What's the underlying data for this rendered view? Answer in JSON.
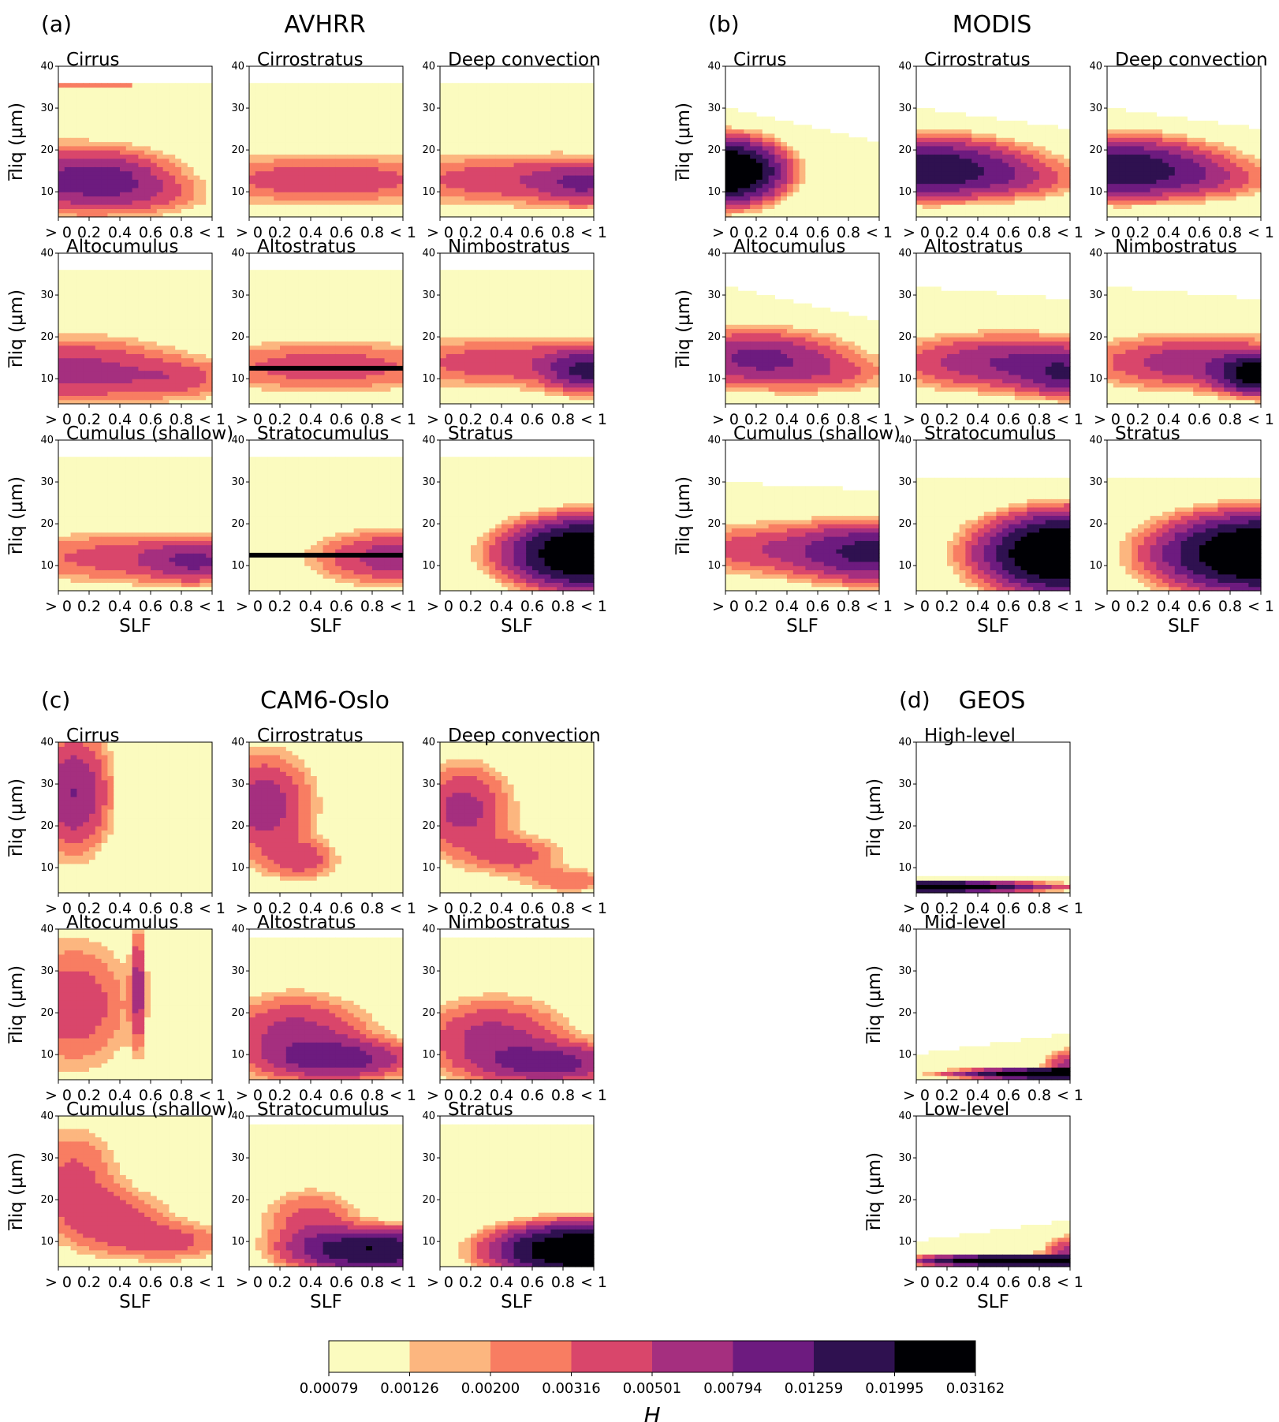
{
  "figure": {
    "panels": [
      {
        "letter": "(a)",
        "title": "AVHRR"
      },
      {
        "letter": "(b)",
        "title": "MODIS"
      },
      {
        "letter": "(c)",
        "title": "CAM6-Oslo"
      },
      {
        "letter": "(d)",
        "title": "GEOS"
      }
    ],
    "y_label": "r̅liq (μm)",
    "x_label": "SLF",
    "y_ticks": [
      "10",
      "20",
      "30",
      "40"
    ],
    "x_ticks": [
      "> 0",
      "0.2",
      "0.4",
      "0.6",
      "0.8",
      "< 1"
    ],
    "colorbar": {
      "label": "H",
      "ticks": [
        "0.00079",
        "0.00126",
        "0.00200",
        "0.00316",
        "0.00501",
        "0.00794",
        "0.01259",
        "0.01995",
        "0.03162"
      ],
      "colors": [
        "#fbfbbf",
        "#fcb67f",
        "#f87d62",
        "#d9466b",
        "#a52f7f",
        "#6d1b7f",
        "#2f1150",
        "#000004"
      ]
    }
  },
  "chart_data": [
    {
      "type": "heatmap",
      "panel": "(a)",
      "dataset": "AVHRR",
      "title": "Cirrus",
      "ylim": [
        4,
        40
      ],
      "xlim": [
        0,
        1
      ],
      "hotspots": [
        {
          "x": 0.0,
          "y": 13,
          "sx": 0.4,
          "sy": 5,
          "peak": 0.007
        },
        {
          "x": 0.35,
          "y": 13,
          "sx": 0.25,
          "sy": 4,
          "peak": 0.005
        },
        {
          "x": 0.65,
          "y": 9,
          "sx": 0.25,
          "sy": 3,
          "peak": 0.002
        }
      ],
      "max_y": 36,
      "band_y": 35.5,
      "band_level": 0.002
    },
    {
      "type": "heatmap",
      "panel": "(a)",
      "dataset": "AVHRR",
      "title": "Cirrostratus",
      "ylim": [
        4,
        40
      ],
      "xlim": [
        0,
        1
      ],
      "hotspots": [
        {
          "x": 0.5,
          "y": 13,
          "sx": 0.6,
          "sy": 4,
          "peak": 0.0045
        }
      ],
      "max_y": 36
    },
    {
      "type": "heatmap",
      "panel": "(a)",
      "dataset": "AVHRR",
      "title": "Deep convection",
      "ylim": [
        4,
        40
      ],
      "xlim": [
        0,
        1
      ],
      "hotspots": [
        {
          "x": 0.5,
          "y": 13,
          "sx": 0.6,
          "sy": 4,
          "peak": 0.0045
        },
        {
          "x": 0.95,
          "y": 12,
          "sx": 0.2,
          "sy": 3,
          "peak": 0.006
        }
      ],
      "max_y": 36
    },
    {
      "type": "heatmap",
      "panel": "(a)",
      "dataset": "AVHRR",
      "title": "Altocumulus",
      "ylim": [
        4,
        40
      ],
      "xlim": [
        0,
        1
      ],
      "hotspots": [
        {
          "x": 0.1,
          "y": 12,
          "sx": 0.45,
          "sy": 5,
          "peak": 0.006
        },
        {
          "x": 0.8,
          "y": 10,
          "sx": 0.25,
          "sy": 3,
          "peak": 0.003
        }
      ],
      "max_y": 36
    },
    {
      "type": "heatmap",
      "panel": "(a)",
      "dataset": "AVHRR",
      "title": "Altostratus",
      "ylim": [
        4,
        40
      ],
      "xlim": [
        0,
        1
      ],
      "hotspots": [
        {
          "x": 0.5,
          "y": 13,
          "sx": 0.6,
          "sy": 4,
          "peak": 0.0042
        }
      ],
      "max_y": 36,
      "line_y": 12.5
    },
    {
      "type": "heatmap",
      "panel": "(a)",
      "dataset": "AVHRR",
      "title": "Nimbostratus",
      "ylim": [
        4,
        40
      ],
      "xlim": [
        0,
        1
      ],
      "hotspots": [
        {
          "x": 0.5,
          "y": 14,
          "sx": 0.6,
          "sy": 4,
          "peak": 0.0045
        },
        {
          "x": 0.95,
          "y": 12,
          "sx": 0.15,
          "sy": 3,
          "peak": 0.012
        }
      ],
      "max_y": 36
    },
    {
      "type": "heatmap",
      "panel": "(a)",
      "dataset": "AVHRR",
      "title": "Cumulus (shallow)",
      "ylim": [
        4,
        40
      ],
      "xlim": [
        0,
        1
      ],
      "hotspots": [
        {
          "x": 0.5,
          "y": 12,
          "sx": 0.6,
          "sy": 4,
          "peak": 0.0042
        },
        {
          "x": 0.9,
          "y": 11,
          "sx": 0.2,
          "sy": 3,
          "peak": 0.006
        }
      ],
      "max_y": 36
    },
    {
      "type": "heatmap",
      "panel": "(a)",
      "dataset": "AVHRR",
      "title": "Stratocumulus",
      "ylim": [
        4,
        40
      ],
      "xlim": [
        0,
        1
      ],
      "hotspots": [
        {
          "x": 1.0,
          "y": 12,
          "sx": 0.35,
          "sy": 4,
          "peak": 0.007
        }
      ],
      "max_y": 36,
      "line_y": 12.5
    },
    {
      "type": "heatmap",
      "panel": "(a)",
      "dataset": "AVHRR",
      "title": "Stratus",
      "ylim": [
        4,
        40
      ],
      "xlim": [
        0,
        1
      ],
      "hotspots": [
        {
          "x": 1.0,
          "y": 13,
          "sx": 0.3,
          "sy": 4.5,
          "peak": 0.04
        }
      ],
      "max_y": 36
    },
    {
      "type": "heatmap",
      "panel": "(b)",
      "dataset": "MODIS",
      "title": "Cirrus",
      "ylim": [
        4,
        40
      ],
      "xlim": [
        0,
        1
      ],
      "hotspots": [
        {
          "x": 0.0,
          "y": 15,
          "sx": 0.2,
          "sy": 4,
          "peak": 0.04
        }
      ],
      "max_y": 30,
      "max_y_slope": -8
    },
    {
      "type": "heatmap",
      "panel": "(b)",
      "dataset": "MODIS",
      "title": "Cirrostratus",
      "ylim": [
        4,
        40
      ],
      "xlim": [
        0,
        1
      ],
      "hotspots": [
        {
          "x": 0.0,
          "y": 16,
          "sx": 0.4,
          "sy": 4,
          "peak": 0.018
        },
        {
          "x": 0.5,
          "y": 13,
          "sx": 0.4,
          "sy": 3,
          "peak": 0.004
        }
      ],
      "max_y": 30,
      "max_y_slope": -5
    },
    {
      "type": "heatmap",
      "panel": "(b)",
      "dataset": "MODIS",
      "title": "Deep convection",
      "ylim": [
        4,
        40
      ],
      "xlim": [
        0,
        1
      ],
      "hotspots": [
        {
          "x": 0.0,
          "y": 16,
          "sx": 0.4,
          "sy": 4,
          "peak": 0.018
        },
        {
          "x": 0.5,
          "y": 13,
          "sx": 0.4,
          "sy": 3,
          "peak": 0.004
        }
      ],
      "max_y": 30,
      "max_y_slope": -5
    },
    {
      "type": "heatmap",
      "panel": "(b)",
      "dataset": "MODIS",
      "title": "Altocumulus",
      "ylim": [
        4,
        40
      ],
      "xlim": [
        0,
        1
      ],
      "hotspots": [
        {
          "x": 0.2,
          "y": 15,
          "sx": 0.35,
          "sy": 4,
          "peak": 0.009
        },
        {
          "x": 0.7,
          "y": 11,
          "sx": 0.3,
          "sy": 3,
          "peak": 0.0025
        }
      ],
      "max_y": 32,
      "max_y_slope": -8
    },
    {
      "type": "heatmap",
      "panel": "(b)",
      "dataset": "MODIS",
      "title": "Altostratus",
      "ylim": [
        4,
        40
      ],
      "xlim": [
        0,
        1
      ],
      "hotspots": [
        {
          "x": 0.6,
          "y": 14,
          "sx": 0.45,
          "sy": 4,
          "peak": 0.008
        },
        {
          "x": 1.0,
          "y": 11,
          "sx": 0.2,
          "sy": 3,
          "peak": 0.01
        }
      ],
      "max_y": 32,
      "max_y_slope": -3
    },
    {
      "type": "heatmap",
      "panel": "(b)",
      "dataset": "MODIS",
      "title": "Nimbostratus",
      "ylim": [
        4,
        40
      ],
      "xlim": [
        0,
        1
      ],
      "hotspots": [
        {
          "x": 0.6,
          "y": 14,
          "sx": 0.45,
          "sy": 4,
          "peak": 0.007
        },
        {
          "x": 1.0,
          "y": 11,
          "sx": 0.15,
          "sy": 2.5,
          "peak": 0.03
        }
      ],
      "max_y": 32,
      "max_y_slope": -3
    },
    {
      "type": "heatmap",
      "panel": "(b)",
      "dataset": "MODIS",
      "title": "Cumulus (shallow)",
      "ylim": [
        4,
        40
      ],
      "xlim": [
        0,
        1
      ],
      "hotspots": [
        {
          "x": 0.5,
          "y": 14,
          "sx": 0.6,
          "sy": 4,
          "peak": 0.005
        },
        {
          "x": 1.0,
          "y": 13,
          "sx": 0.3,
          "sy": 4,
          "peak": 0.012
        }
      ],
      "max_y": 30,
      "max_y_slope": -2
    },
    {
      "type": "heatmap",
      "panel": "(b)",
      "dataset": "MODIS",
      "title": "Stratocumulus",
      "ylim": [
        4,
        40
      ],
      "xlim": [
        0,
        1
      ],
      "hotspots": [
        {
          "x": 1.0,
          "y": 13,
          "sx": 0.3,
          "sy": 5,
          "peak": 0.045
        }
      ],
      "max_y": 31
    },
    {
      "type": "heatmap",
      "panel": "(b)",
      "dataset": "MODIS",
      "title": "Stratus",
      "ylim": [
        4,
        40
      ],
      "xlim": [
        0,
        1
      ],
      "hotspots": [
        {
          "x": 1.0,
          "y": 13,
          "sx": 0.35,
          "sy": 5,
          "peak": 0.04
        }
      ],
      "max_y": 31
    },
    {
      "type": "heatmap",
      "panel": "(c)",
      "dataset": "CAM6-Oslo",
      "title": "Cirrus",
      "ylim": [
        4,
        40
      ],
      "xlim": [
        0,
        1
      ],
      "hotspots": [
        {
          "x": 0.1,
          "y": 28,
          "sx": 0.15,
          "sy": 9,
          "peak": 0.008
        }
      ],
      "max_y": 40,
      "xcut": 0.35
    },
    {
      "type": "heatmap",
      "panel": "(c)",
      "dataset": "CAM6-Oslo",
      "title": "Cirrostratus",
      "ylim": [
        4,
        40
      ],
      "xlim": [
        0,
        1
      ],
      "hotspots": [
        {
          "x": 0.1,
          "y": 25,
          "sx": 0.2,
          "sy": 8,
          "peak": 0.0065
        },
        {
          "x": 0.35,
          "y": 12,
          "sx": 0.15,
          "sy": 3,
          "peak": 0.004
        }
      ],
      "max_y": 40,
      "xcut": 0.6
    },
    {
      "type": "heatmap",
      "panel": "(c)",
      "dataset": "CAM6-Oslo",
      "title": "Deep convection",
      "ylim": [
        4,
        40
      ],
      "xlim": [
        0,
        1
      ],
      "hotspots": [
        {
          "x": 0.15,
          "y": 24,
          "sx": 0.2,
          "sy": 7,
          "peak": 0.006
        },
        {
          "x": 0.5,
          "y": 13,
          "sx": 0.2,
          "sy": 3,
          "peak": 0.004
        },
        {
          "x": 0.85,
          "y": 7,
          "sx": 0.2,
          "sy": 2,
          "peak": 0.003
        }
      ],
      "max_y": 40
    },
    {
      "type": "heatmap",
      "panel": "(c)",
      "dataset": "CAM6-Oslo",
      "title": "Altocumulus",
      "ylim": [
        4,
        40
      ],
      "xlim": [
        0,
        1
      ],
      "hotspots": [
        {
          "x": 0.1,
          "y": 22,
          "sx": 0.25,
          "sy": 10,
          "peak": 0.0045
        },
        {
          "x": 0.52,
          "y": 26,
          "sx": 0.03,
          "sy": 9,
          "peak": 0.006
        }
      ],
      "max_y": 40,
      "xcut": 0.7
    },
    {
      "type": "heatmap",
      "panel": "(c)",
      "dataset": "CAM6-Oslo",
      "title": "Altostratus",
      "ylim": [
        4,
        40
      ],
      "xlim": [
        0,
        1
      ],
      "hotspots": [
        {
          "x": 0.3,
          "y": 15,
          "sx": 0.3,
          "sy": 6,
          "peak": 0.006
        },
        {
          "x": 0.6,
          "y": 9,
          "sx": 0.3,
          "sy": 3,
          "peak": 0.009
        }
      ],
      "max_y": 38
    },
    {
      "type": "heatmap",
      "panel": "(c)",
      "dataset": "CAM6-Oslo",
      "title": "Nimbostratus",
      "ylim": [
        4,
        40
      ],
      "xlim": [
        0,
        1
      ],
      "hotspots": [
        {
          "x": 0.35,
          "y": 14,
          "sx": 0.3,
          "sy": 6,
          "peak": 0.006
        },
        {
          "x": 0.75,
          "y": 8,
          "sx": 0.3,
          "sy": 3,
          "peak": 0.009
        }
      ],
      "max_y": 38
    },
    {
      "type": "heatmap",
      "panel": "(c)",
      "dataset": "CAM6-Oslo",
      "title": "Cumulus (shallow)",
      "ylim": [
        4,
        40
      ],
      "xlim": [
        0,
        1
      ],
      "hotspots": [
        {
          "x": 0.1,
          "y": 26,
          "sx": 0.2,
          "sy": 8,
          "peak": 0.0035
        },
        {
          "x": 0.35,
          "y": 15,
          "sx": 0.25,
          "sy": 5,
          "peak": 0.004
        },
        {
          "x": 0.75,
          "y": 10,
          "sx": 0.25,
          "sy": 3,
          "peak": 0.0035
        }
      ],
      "max_y": 40
    },
    {
      "type": "heatmap",
      "panel": "(c)",
      "dataset": "CAM6-Oslo",
      "title": "Stratocumulus",
      "ylim": [
        4,
        40
      ],
      "xlim": [
        0,
        1
      ],
      "hotspots": [
        {
          "x": 0.4,
          "y": 15,
          "sx": 0.2,
          "sy": 5,
          "peak": 0.004
        },
        {
          "x": 0.8,
          "y": 8,
          "sx": 0.3,
          "sy": 3,
          "peak": 0.02
        }
      ],
      "max_y": 38
    },
    {
      "type": "heatmap",
      "panel": "(c)",
      "dataset": "CAM6-Oslo",
      "title": "Stratus",
      "ylim": [
        4,
        40
      ],
      "xlim": [
        0,
        1
      ],
      "hotspots": [
        {
          "x": 0.9,
          "y": 8,
          "sx": 0.3,
          "sy": 3.5,
          "peak": 0.035
        }
      ],
      "max_y": 38
    },
    {
      "type": "heatmap",
      "panel": "(d)",
      "dataset": "GEOS",
      "title": "High-level",
      "ylim": [
        4,
        40
      ],
      "xlim": [
        0,
        1
      ],
      "hotspots": [
        {
          "x": 0.0,
          "y": 5.5,
          "sx": 0.35,
          "sy": 0.7,
          "peak": 0.05
        },
        {
          "x": 0.6,
          "y": 5.5,
          "sx": 0.35,
          "sy": 0.7,
          "peak": 0.004
        }
      ],
      "max_y": 8
    },
    {
      "type": "heatmap",
      "panel": "(d)",
      "dataset": "GEOS",
      "title": "Mid-level",
      "ylim": [
        4,
        40
      ],
      "xlim": [
        0,
        1
      ],
      "hotspots": [
        {
          "x": 1.0,
          "y": 5.5,
          "sx": 0.35,
          "sy": 0.7,
          "peak": 0.05
        },
        {
          "x": 1.0,
          "y": 8,
          "sx": 0.1,
          "sy": 2,
          "peak": 0.006
        }
      ],
      "max_y": 10,
      "max_y_slope": 5
    },
    {
      "type": "heatmap",
      "panel": "(d)",
      "dataset": "GEOS",
      "title": "Low-level",
      "ylim": [
        4,
        40
      ],
      "xlim": [
        0,
        1
      ],
      "hotspots": [
        {
          "x": 0.7,
          "y": 5.5,
          "sx": 0.35,
          "sy": 0.7,
          "peak": 0.05
        },
        {
          "x": 1.0,
          "y": 8,
          "sx": 0.1,
          "sy": 2,
          "peak": 0.006
        }
      ],
      "max_y": 10,
      "max_y_slope": 5
    }
  ]
}
